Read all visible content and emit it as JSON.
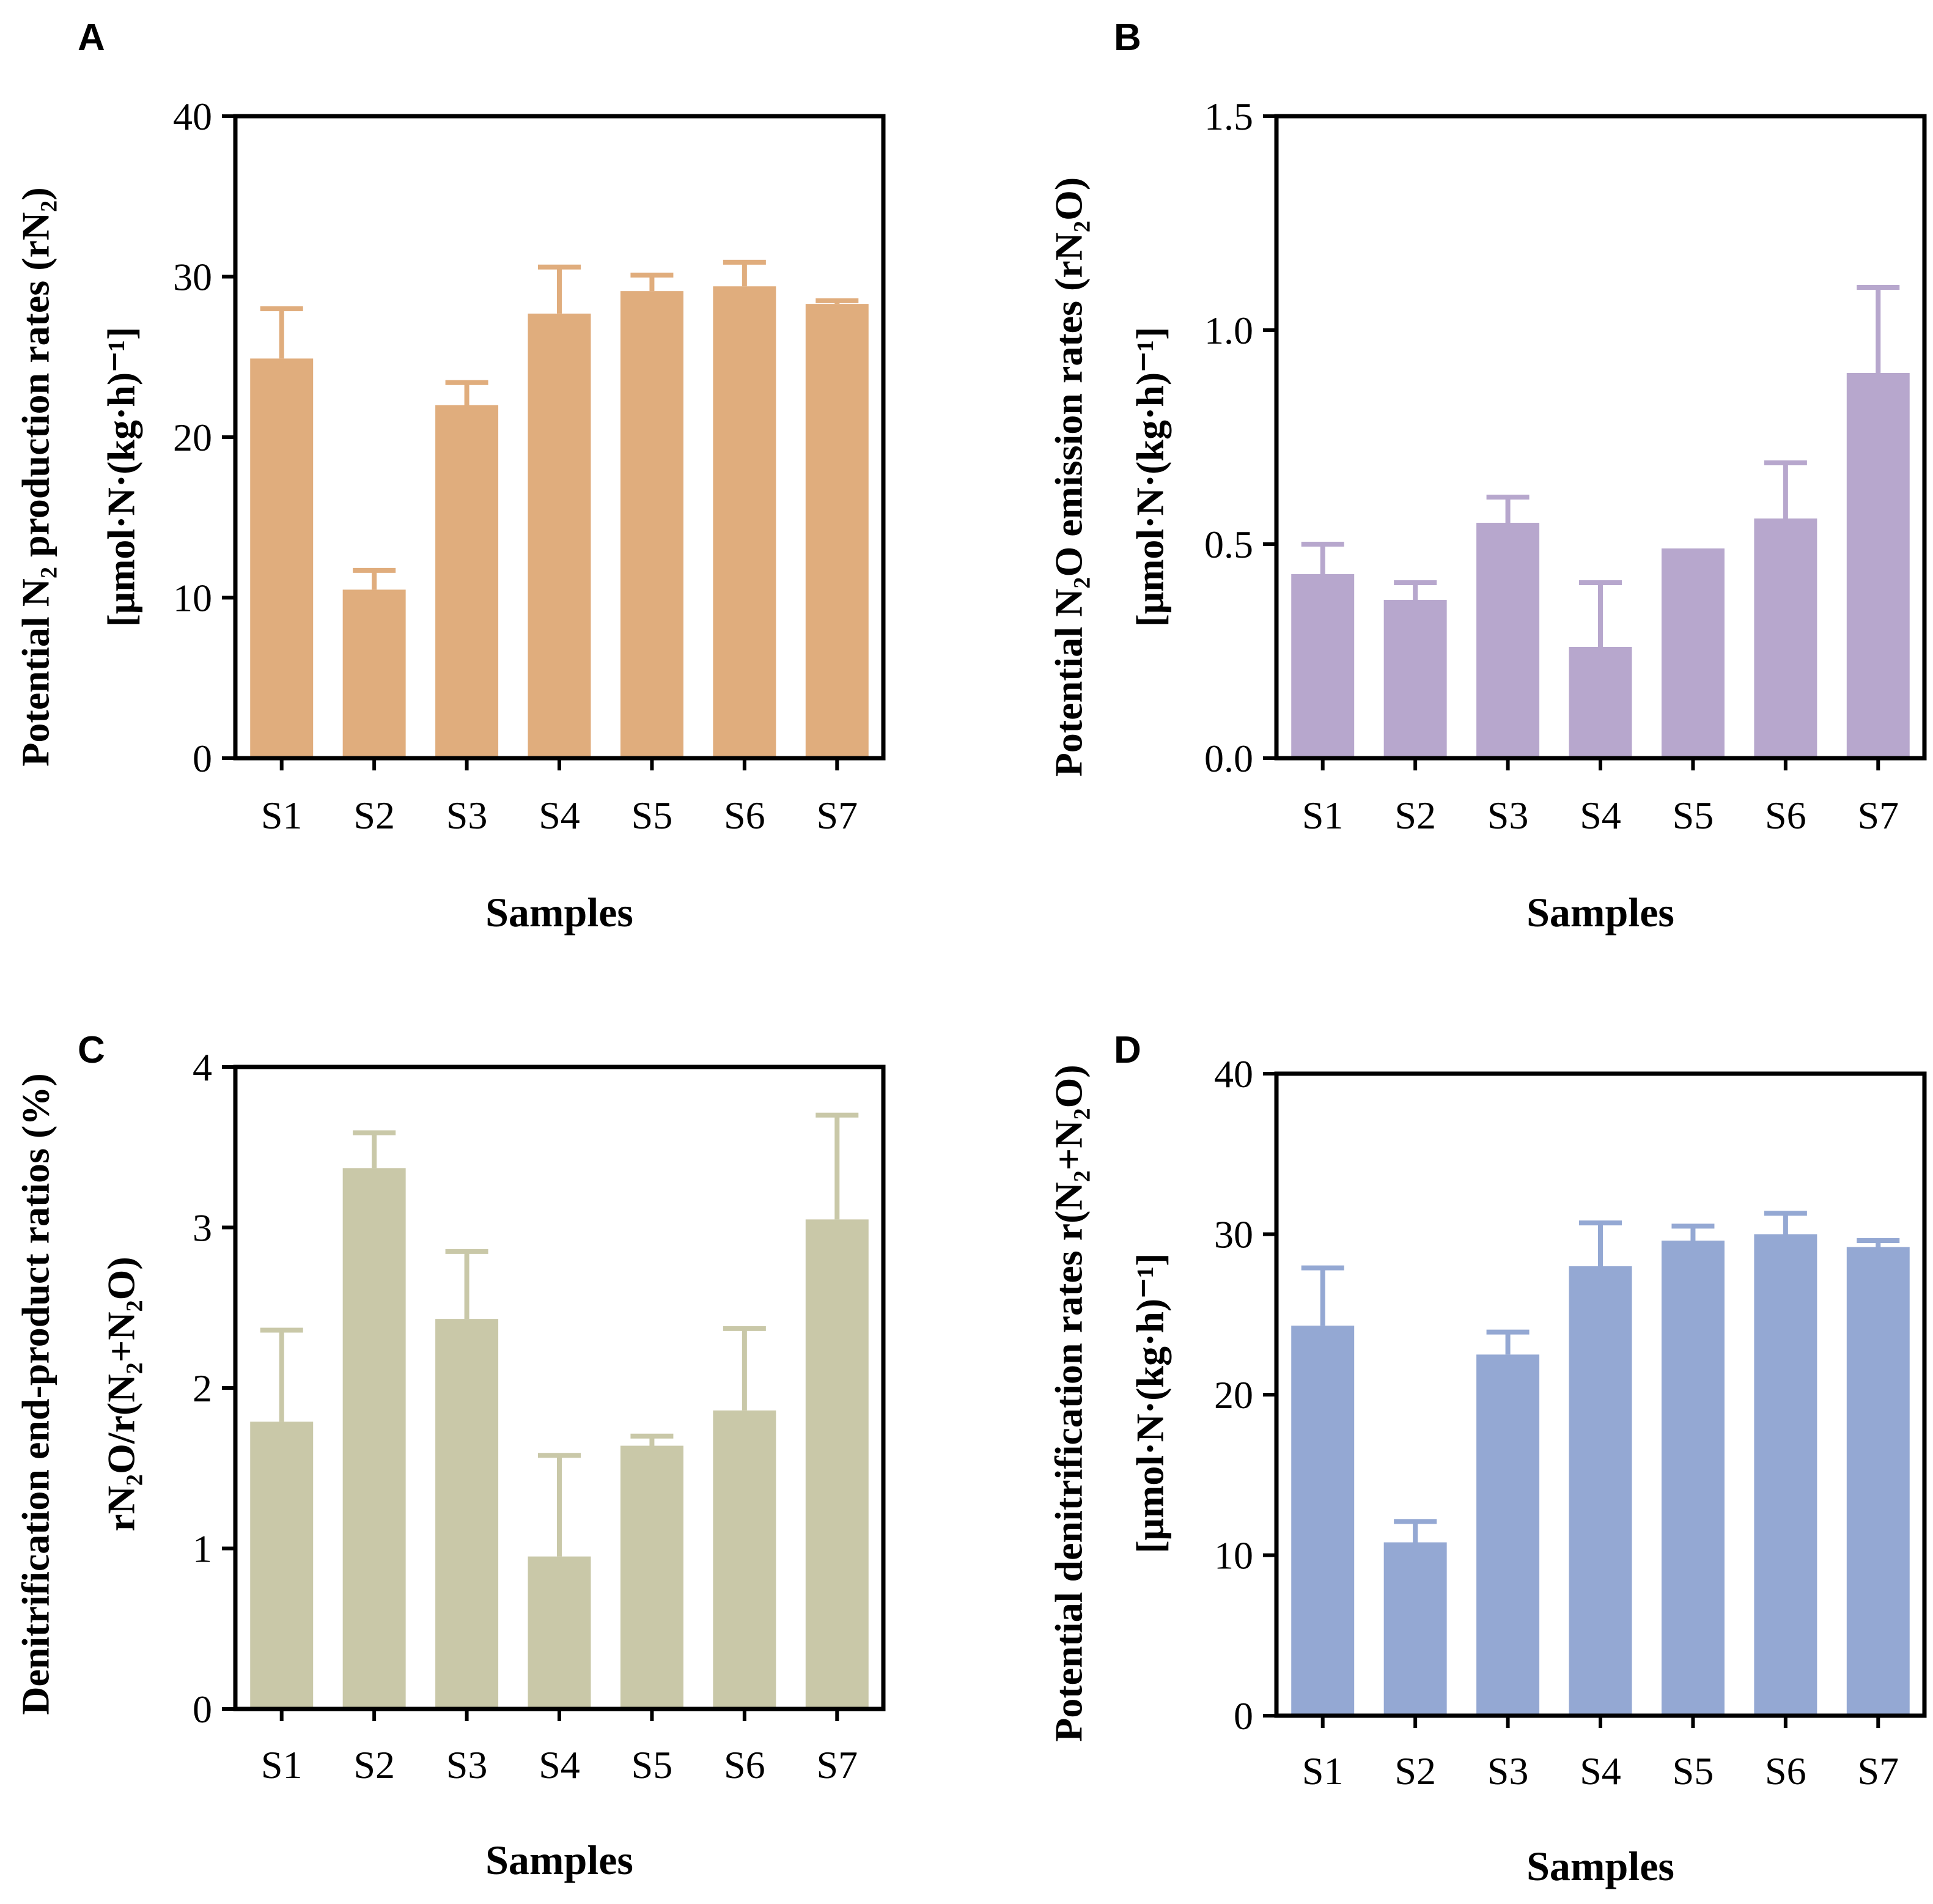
{
  "chart_data": [
    {
      "panel": "A",
      "type": "bar",
      "categories": [
        "S1",
        "S2",
        "S3",
        "S4",
        "S5",
        "S6",
        "S7"
      ],
      "values": [
        24.9,
        10.5,
        22.0,
        27.7,
        29.1,
        29.4,
        28.3
      ],
      "errors": [
        3.1,
        1.2,
        1.4,
        2.9,
        1.0,
        1.5,
        0.2
      ],
      "ylim": [
        0,
        40
      ],
      "yticks": [
        "0",
        "10",
        "20",
        "30",
        "40"
      ],
      "ytick_values": [
        0,
        10,
        20,
        30,
        40
      ],
      "xlabel": "Samples",
      "ylabel_lines": [
        "Potential N₂ production rates (rN₂)",
        "[μmol·N·(kg·h)⁻¹]"
      ],
      "color": "#E0AD7D"
    },
    {
      "panel": "B",
      "type": "bar",
      "categories": [
        "S1",
        "S2",
        "S3",
        "S4",
        "S5",
        "S6",
        "S7"
      ],
      "values": [
        0.43,
        0.37,
        0.55,
        0.26,
        0.49,
        0.56,
        0.9
      ],
      "errors": [
        0.07,
        0.04,
        0.06,
        0.15,
        0.0,
        0.13,
        0.2
      ],
      "ylim": [
        0,
        1.5
      ],
      "yticks": [
        "0.0",
        "0.5",
        "1.0",
        "1.5"
      ],
      "ytick_values": [
        0,
        0.5,
        1.0,
        1.5
      ],
      "xlabel": "Samples",
      "ylabel_lines": [
        "Potential N₂O emission rates (rN₂O)",
        "[μmol·N·(kg·h)⁻¹]"
      ],
      "color": "#B7A7CD"
    },
    {
      "panel": "C",
      "type": "bar",
      "categories": [
        "S1",
        "S2",
        "S3",
        "S4",
        "S5",
        "S6",
        "S7"
      ],
      "values": [
        1.79,
        3.37,
        2.43,
        0.95,
        1.64,
        1.86,
        3.05
      ],
      "errors": [
        0.57,
        0.22,
        0.42,
        0.63,
        0.06,
        0.51,
        0.65
      ],
      "ylim": [
        0,
        4
      ],
      "yticks": [
        "0",
        "1",
        "2",
        "3",
        "4"
      ],
      "ytick_values": [
        0,
        1,
        2,
        3,
        4
      ],
      "xlabel": "Samples",
      "ylabel_lines": [
        "Denitrification end-product ratios (%)",
        "rN₂O/r(N₂+N₂O)"
      ],
      "color": "#C9C8A8"
    },
    {
      "panel": "D",
      "type": "bar",
      "categories": [
        "S1",
        "S2",
        "S3",
        "S4",
        "S5",
        "S6",
        "S7"
      ],
      "values": [
        24.3,
        10.8,
        22.5,
        28.0,
        29.6,
        30.0,
        29.2
      ],
      "errors": [
        3.6,
        1.3,
        1.4,
        2.7,
        0.9,
        1.3,
        0.4
      ],
      "ylim": [
        0,
        40
      ],
      "yticks": [
        "0",
        "10",
        "20",
        "30",
        "40"
      ],
      "ytick_values": [
        0,
        10,
        20,
        30,
        40
      ],
      "xlabel": "Samples",
      "ylabel_lines": [
        "Potential denitrification rates r(N₂+N₂O)",
        "[μmol·N·(kg·h)⁻¹]"
      ],
      "color": "#94A8D3"
    }
  ]
}
